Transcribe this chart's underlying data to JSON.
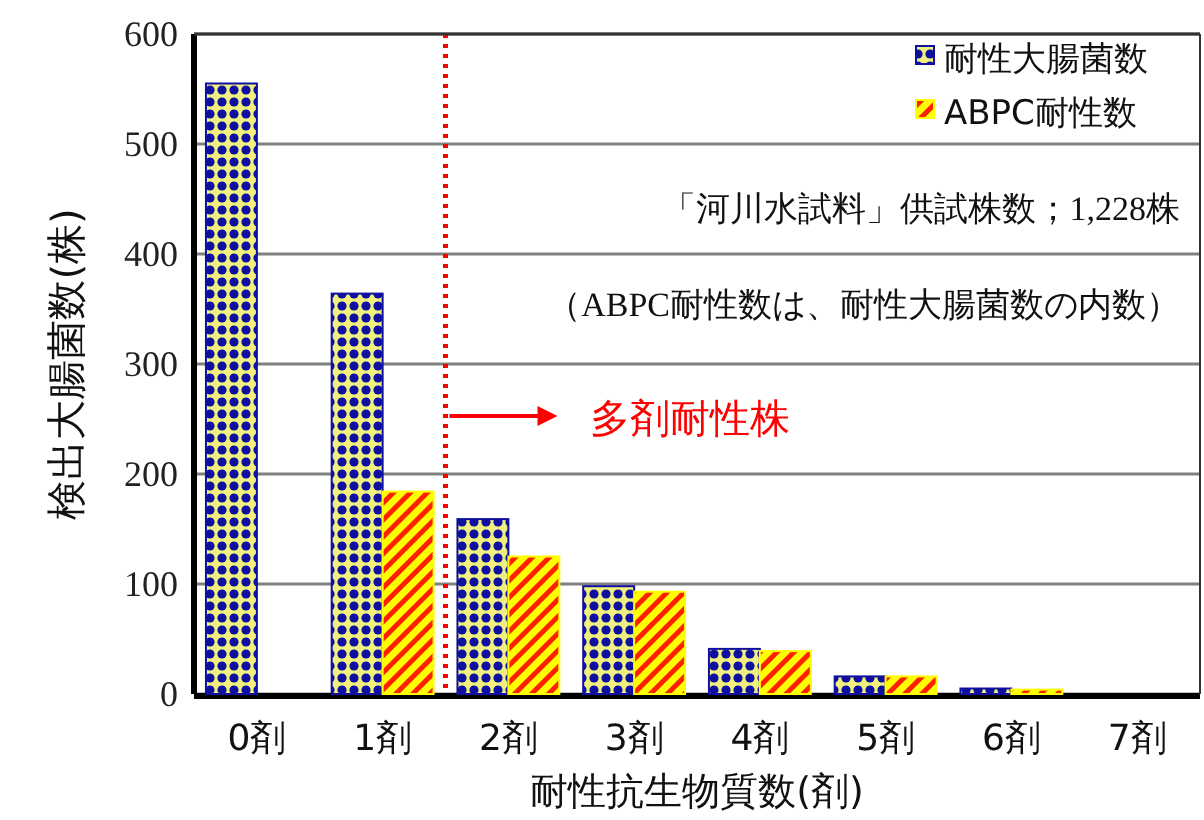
{
  "chart_data": {
    "type": "bar",
    "xlabel": "耐性抗生物質数(剤)",
    "ylabel": "検出大腸菌数(株)",
    "categories": [
      "0剤",
      "1剤",
      "2剤",
      "3剤",
      "4剤",
      "5剤",
      "6剤",
      "7剤"
    ],
    "series": [
      {
        "name": "耐性大腸菌数",
        "color": "#1010a0",
        "values": [
          555,
          364,
          159,
          98,
          41,
          16,
          5,
          0
        ]
      },
      {
        "name": "ABPC耐性数",
        "color": "#ffff00",
        "values": [
          0,
          184,
          125,
          93,
          39,
          16,
          4,
          0
        ]
      }
    ],
    "ylim": [
      0,
      600
    ],
    "yticks": [
      0,
      100,
      200,
      300,
      400,
      500,
      600
    ],
    "grid": "y",
    "legend": "top right",
    "ref_lines": [
      {
        "axis": "x",
        "value": "2剤",
        "label": "多剤耐性株",
        "color": "#ff0000",
        "line_style": "dotted"
      }
    ],
    "annotations": [
      "「河川水試料」供試株数；1,228株",
      "（ABPC耐性数は、耐性大腸菌数の内数）"
    ]
  }
}
